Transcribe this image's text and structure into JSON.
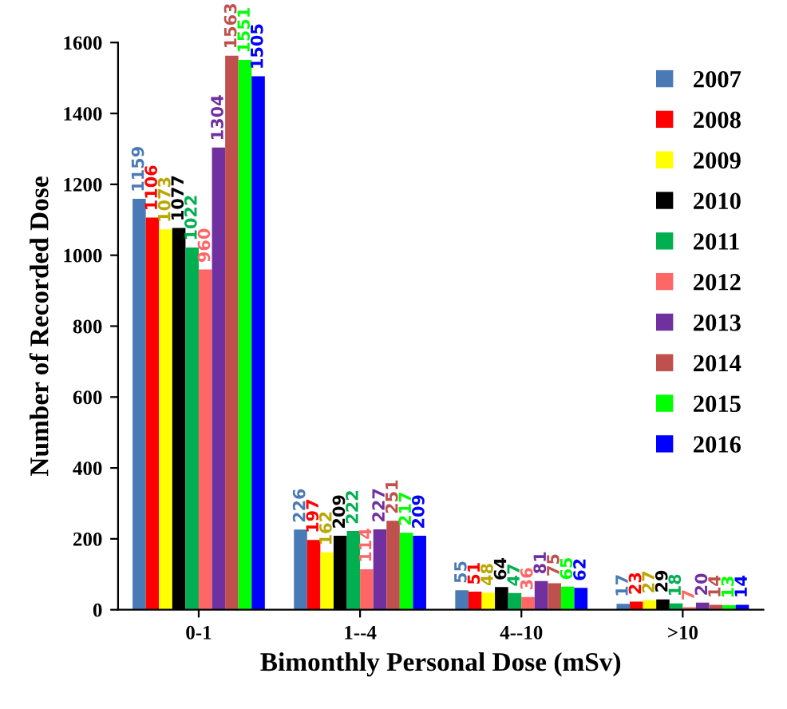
{
  "chart_data": {
    "type": "bar",
    "xlabel": "Bimonthly Personal Dose (mSv)",
    "ylabel": "Number of Recorded Dose",
    "categories": [
      "0-1",
      "1--4",
      "4--10",
      ">10"
    ],
    "series": [
      {
        "name": "2007",
        "color": "#4a7ab5",
        "values": [
          1159,
          226,
          55,
          17
        ]
      },
      {
        "name": "2008",
        "color": "#ff0000",
        "values": [
          1106,
          197,
          51,
          23
        ]
      },
      {
        "name": "2009",
        "color": "#ffff00",
        "values": [
          1073,
          162,
          48,
          27
        ]
      },
      {
        "name": "2010",
        "color": "#000000",
        "values": [
          1077,
          209,
          64,
          29
        ]
      },
      {
        "name": "2011",
        "color": "#00b050",
        "values": [
          1022,
          222,
          47,
          18
        ]
      },
      {
        "name": "2012",
        "color": "#ff6666",
        "values": [
          960,
          114,
          36,
          7
        ]
      },
      {
        "name": "2013",
        "color": "#7030a0",
        "values": [
          1304,
          227,
          81,
          20
        ]
      },
      {
        "name": "2014",
        "color": "#c0504d",
        "values": [
          1563,
          251,
          75,
          14
        ]
      },
      {
        "name": "2015",
        "color": "#00ff00",
        "values": [
          1551,
          217,
          65,
          13
        ]
      },
      {
        "name": "2016",
        "color": "#0000ff",
        "values": [
          1505,
          209,
          62,
          14
        ]
      }
    ],
    "ylim": [
      0,
      1600
    ],
    "yticks": [
      0,
      200,
      400,
      600,
      800,
      1000,
      1200,
      1400,
      1600
    ],
    "data_labels": true,
    "legend": "top right",
    "grid": false
  }
}
